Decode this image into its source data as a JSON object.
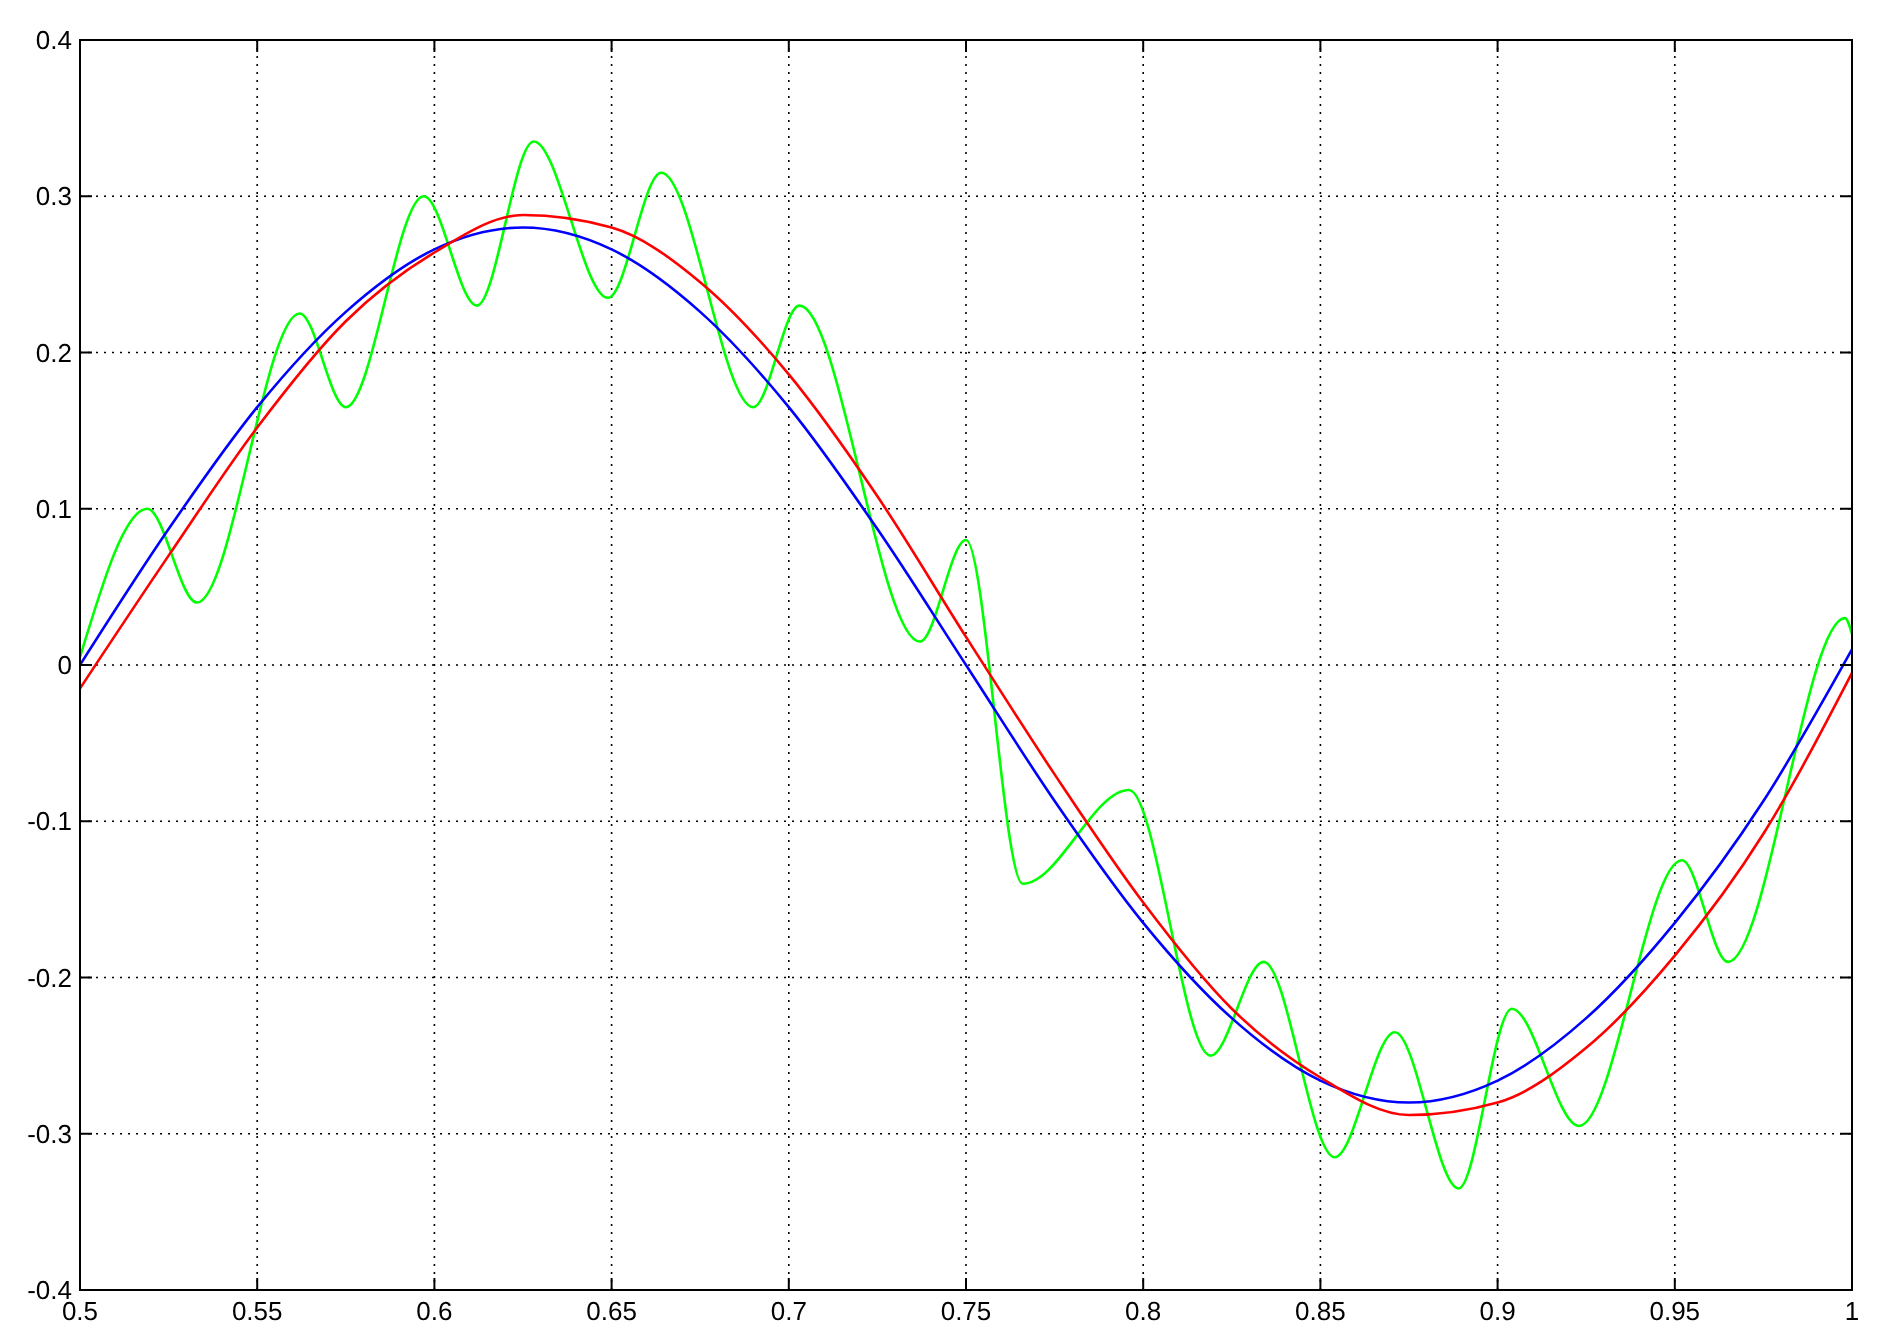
{
  "chart_data": {
    "type": "line",
    "xlim": [
      0.5,
      1
    ],
    "ylim": [
      -0.4,
      0.4
    ],
    "xticks": [
      0.5,
      0.55,
      0.6,
      0.65,
      0.7,
      0.75,
      0.8,
      0.85,
      0.9,
      0.95,
      1
    ],
    "yticks": [
      -0.4,
      -0.3,
      -0.2,
      -0.1,
      0,
      0.1,
      0.2,
      0.3,
      0.4
    ],
    "grid": true,
    "line_style": "solid",
    "marker": "none",
    "series": [
      {
        "color": "#00ff00",
        "x": [
          0.5,
          0.519,
          0.533,
          0.562,
          0.575,
          0.597,
          0.612,
          0.628,
          0.649,
          0.664,
          0.69,
          0.703,
          0.737,
          0.75,
          0.766,
          0.796,
          0.819,
          0.834,
          0.854,
          0.871,
          0.889,
          0.904,
          0.923,
          0.952,
          0.965,
          0.998,
          1
        ],
        "values": [
          0.005,
          0.1,
          0.04,
          0.225,
          0.165,
          0.3,
          0.23,
          0.335,
          0.235,
          0.315,
          0.165,
          0.23,
          0.015,
          0.08,
          -0.14,
          -0.08,
          -0.25,
          -0.19,
          -0.315,
          -0.235,
          -0.335,
          -0.22,
          -0.295,
          -0.125,
          -0.19,
          0.03,
          0.02
        ]
      },
      {
        "color": "#0000ff",
        "x": [
          0.5,
          0.525,
          0.55,
          0.575,
          0.6,
          0.625,
          0.65,
          0.675,
          0.7,
          0.725,
          0.75,
          0.775,
          0.8,
          0.825,
          0.85,
          0.875,
          0.9,
          0.925,
          0.95,
          0.975,
          1
        ],
        "values": [
          0,
          0.087,
          0.165,
          0.226,
          0.266,
          0.28,
          0.266,
          0.226,
          0.165,
          0.087,
          0,
          -0.087,
          -0.165,
          -0.226,
          -0.266,
          -0.28,
          -0.266,
          -0.226,
          -0.165,
          -0.087,
          0.01
        ]
      },
      {
        "color": "#ff0000",
        "x": [
          0.5,
          0.525,
          0.55,
          0.575,
          0.6,
          0.625,
          0.65,
          0.675,
          0.7,
          0.725,
          0.75,
          0.775,
          0.8,
          0.825,
          0.85,
          0.875,
          0.9,
          0.925,
          0.95,
          0.975,
          1
        ],
        "values": [
          -0.015,
          0.07,
          0.152,
          0.22,
          0.264,
          0.288,
          0.28,
          0.245,
          0.186,
          0.108,
          0.018,
          -0.07,
          -0.152,
          -0.22,
          -0.264,
          -0.288,
          -0.28,
          -0.245,
          -0.186,
          -0.108,
          -0.005
        ]
      }
    ]
  }
}
